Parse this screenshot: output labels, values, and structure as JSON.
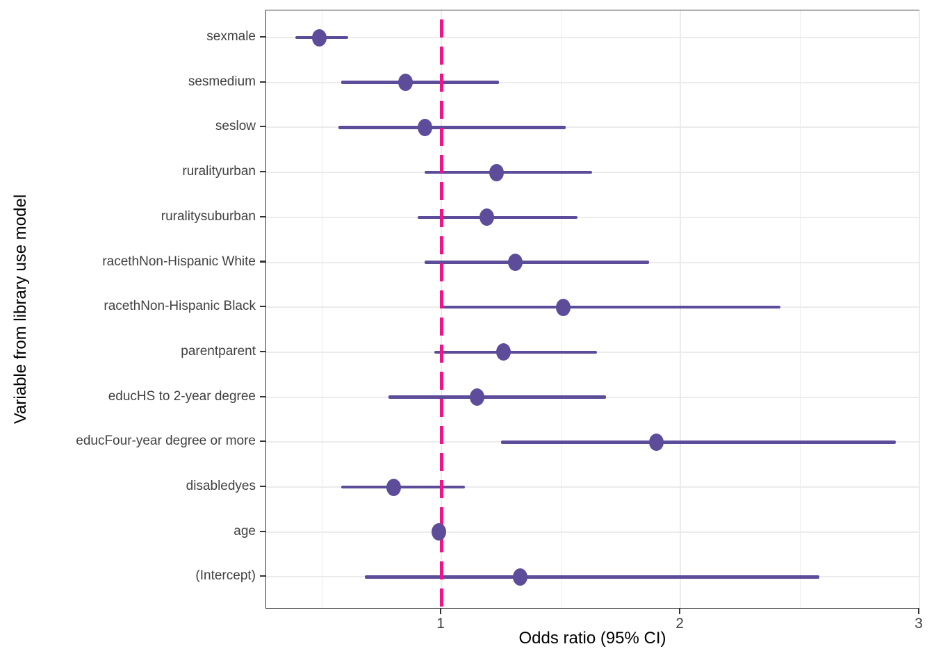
{
  "colors": {
    "point": "#5D4C99",
    "ci_line": "#5D4C99",
    "reference_line": "#F0138D",
    "gridline": "#EBEBEB",
    "panel_border": "#333333",
    "tick": "#333333",
    "tick_label": "#404040",
    "axis_title": "#000000",
    "background": "#FFFFFF"
  },
  "chart_data": {
    "type": "scatter",
    "subtype": "forest_plot_odds_ratios",
    "title": "",
    "xlabel": "Odds ratio (95% CI)",
    "ylabel": "Variable from library use model",
    "x_ticks": [
      "1",
      "2",
      "3"
    ],
    "x_tick_values": [
      1,
      2,
      3
    ],
    "x_minor_gridlines": [
      0.5,
      1.5,
      2.5
    ],
    "xlim": [
      0.267,
      3.003
    ],
    "reference_line_x": 1,
    "grid": "vertical major+minor, horizontal major per category",
    "legend": "none",
    "rows": [
      {
        "label": "sexmale",
        "or": 0.49,
        "ci_low": 0.39,
        "ci_high": 0.61
      },
      {
        "label": "sesmedium",
        "or": 0.85,
        "ci_low": 0.58,
        "ci_high": 1.24
      },
      {
        "label": "seslow",
        "or": 0.93,
        "ci_low": 0.57,
        "ci_high": 1.52
      },
      {
        "label": "ruralityurban",
        "or": 1.23,
        "ci_low": 0.93,
        "ci_high": 1.63
      },
      {
        "label": "ruralitysuburban",
        "or": 1.19,
        "ci_low": 0.9,
        "ci_high": 1.57
      },
      {
        "label": "racethNon-Hispanic White",
        "or": 1.31,
        "ci_low": 0.93,
        "ci_high": 1.87
      },
      {
        "label": "racethNon-Hispanic Black",
        "or": 1.51,
        "ci_low": 1.0,
        "ci_high": 2.42
      },
      {
        "label": "parentparent",
        "or": 1.26,
        "ci_low": 0.97,
        "ci_high": 1.65
      },
      {
        "label": "educHS to 2-year degree",
        "or": 1.15,
        "ci_low": 0.78,
        "ci_high": 1.69
      },
      {
        "label": "educFour-year degree or more",
        "or": 1.9,
        "ci_low": 1.25,
        "ci_high": 2.9
      },
      {
        "label": "disabledyes",
        "or": 0.8,
        "ci_low": 0.58,
        "ci_high": 1.1
      },
      {
        "label": "age",
        "or": 0.99,
        "ci_low": 0.99,
        "ci_high": 1.0
      },
      {
        "label": "(Intercept)",
        "or": 1.33,
        "ci_low": 0.68,
        "ci_high": 2.58
      }
    ]
  }
}
